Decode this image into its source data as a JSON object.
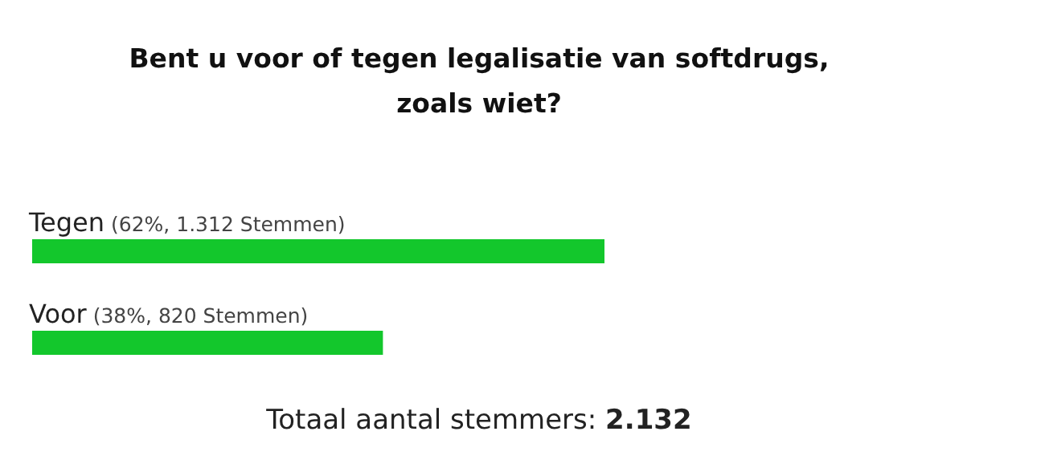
{
  "chart_data": {
    "type": "bar",
    "orientation": "horizontal",
    "title": "Bent u voor of tegen legalisatie van softdrugs, zoals wiet?",
    "categories": [
      "Tegen",
      "Voor"
    ],
    "values": [
      62,
      38
    ],
    "value_labels": [
      "(62%, 1.312 Stemmen)",
      "(38%, 820 Stemmen)"
    ],
    "color": "#13c72c",
    "annotations": [
      "Totaal aantal stemmers: 2.132"
    ]
  }
}
